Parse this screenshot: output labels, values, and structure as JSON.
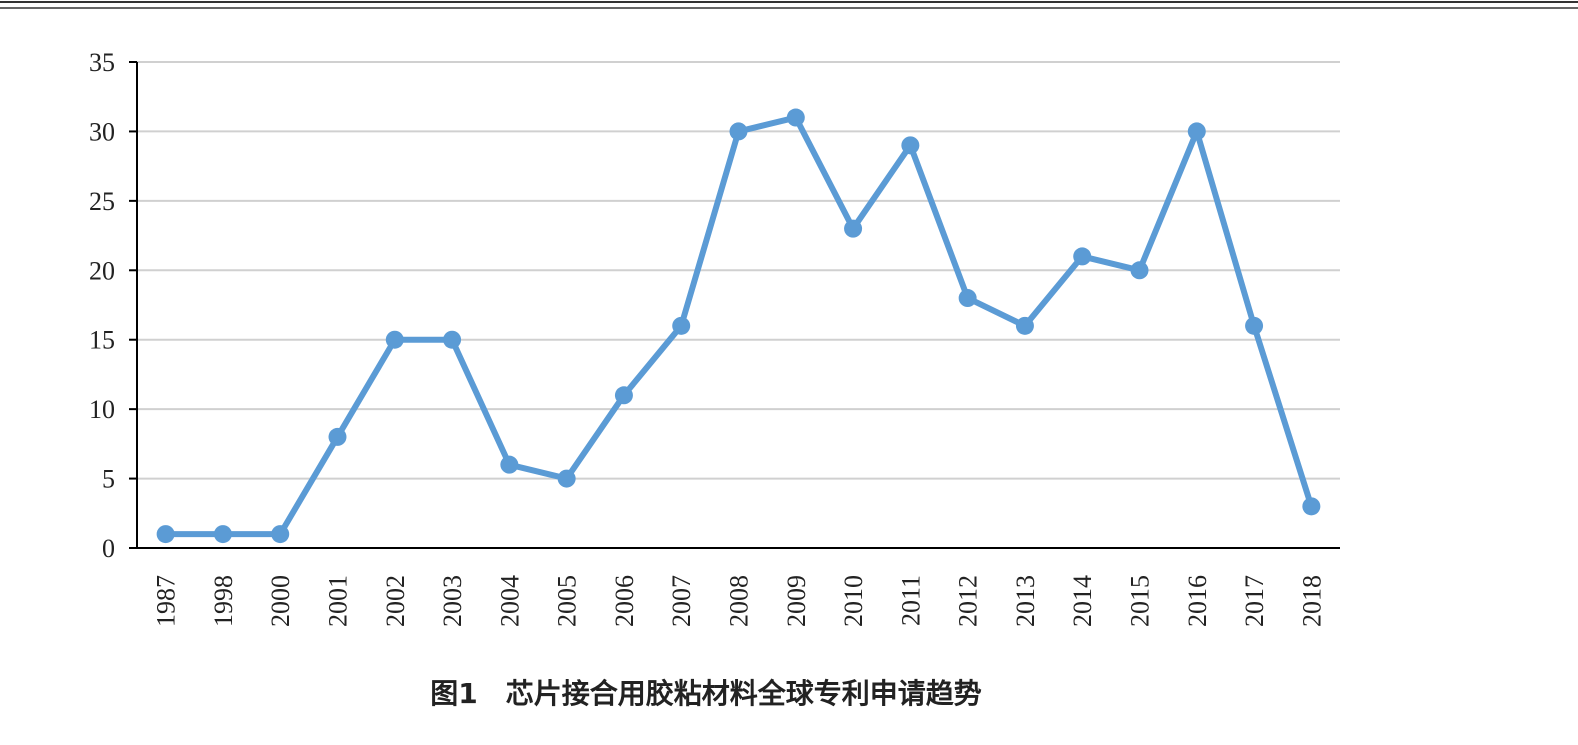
{
  "chart_data": {
    "type": "line",
    "title": "图1　芯片接合用胶粘材料全球专利申请趋势",
    "categories": [
      "1987",
      "1998",
      "2000",
      "2001",
      "2002",
      "2003",
      "2004",
      "2005",
      "2006",
      "2007",
      "2008",
      "2009",
      "2010",
      "2011",
      "2012",
      "2013",
      "2014",
      "2015",
      "2016",
      "2017",
      "2018"
    ],
    "series": [
      {
        "color": "#5b9bd5",
        "values": [
          1,
          1,
          1,
          8,
          15,
          15,
          6,
          5,
          11,
          16,
          30,
          31,
          23,
          29,
          18,
          16,
          21,
          20,
          30,
          16,
          3
        ]
      }
    ],
    "ylim": [
      0,
      35
    ],
    "yticks": [
      0,
      5,
      10,
      15,
      20,
      25,
      30,
      35
    ],
    "grid": true
  }
}
